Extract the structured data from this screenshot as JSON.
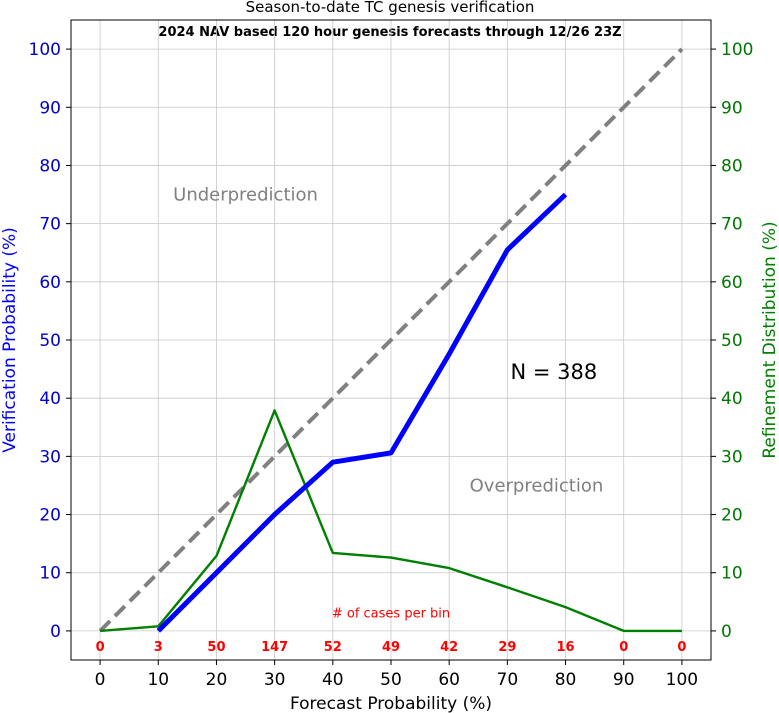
{
  "chart_data": {
    "type": "line",
    "title": "Season-to-date TC genesis verification",
    "subtitle": "2024 NAV based 120 hour genesis forecasts through 12/26 23Z",
    "xlabel": "Forecast Probability (%)",
    "ylabel": "Verification Probability (%)",
    "y2label": "Refinement Distribution (%)",
    "xlim": [
      -5,
      105
    ],
    "ylim": [
      -5,
      105
    ],
    "xticks": [
      0,
      10,
      20,
      30,
      40,
      50,
      60,
      70,
      80,
      90,
      100
    ],
    "yticks": [
      0,
      10,
      20,
      30,
      40,
      50,
      60,
      70,
      80,
      90,
      100
    ],
    "grid": true,
    "series": [
      {
        "role": "reliability",
        "axis": "left",
        "color": "#0000ff",
        "x": [
          10,
          20,
          30,
          40,
          50,
          60,
          70,
          80
        ],
        "y": [
          0,
          10,
          20,
          29,
          30.6,
          47.6,
          65.5,
          75
        ]
      },
      {
        "role": "refinement",
        "axis": "right",
        "color": "#008000",
        "x": [
          0,
          10,
          20,
          30,
          40,
          50,
          60,
          70,
          80,
          90,
          100
        ],
        "y": [
          0,
          0.8,
          12.9,
          37.9,
          13.4,
          12.6,
          10.8,
          7.5,
          4.1,
          0,
          0
        ]
      },
      {
        "role": "perfect",
        "axis": "left",
        "color": "#808080",
        "dashed": true,
        "x": [
          0,
          100
        ],
        "y": [
          0,
          100
        ]
      }
    ],
    "annotations": {
      "under": {
        "text": "Underprediction",
        "x": 25,
        "y": 75
      },
      "over": {
        "text": "Overprediction",
        "x": 75,
        "y": 25
      },
      "n": {
        "text": "N = 388",
        "x": 78,
        "y": 44.5
      },
      "cases_label": {
        "text": "# of cases per bin",
        "x": 50,
        "y": 3
      }
    },
    "case_counts": {
      "x": [
        0,
        10,
        20,
        30,
        40,
        50,
        60,
        70,
        80,
        90,
        100
      ],
      "labels": [
        "0",
        "3",
        "50",
        "147",
        "52",
        "49",
        "42",
        "29",
        "16",
        "0",
        "0"
      ],
      "y": -2.8
    }
  },
  "colors": {
    "left_axis": "#0000cc",
    "right_axis": "#007700",
    "count_text": "#ff0000",
    "grid": "#c8c8c8"
  }
}
